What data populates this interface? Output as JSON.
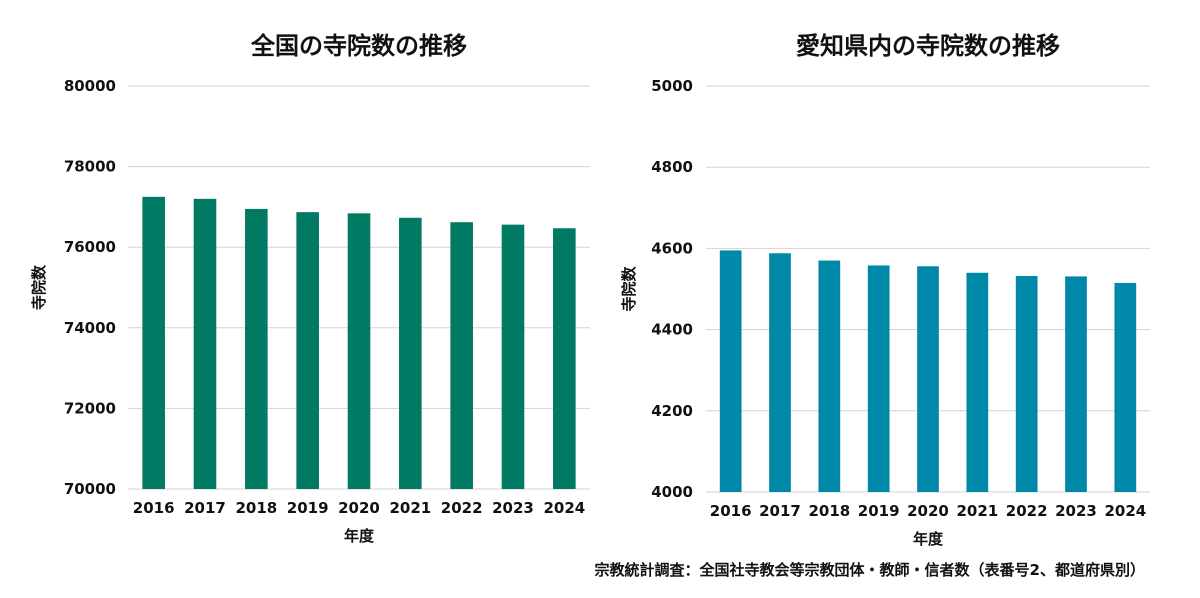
{
  "chart_data": [
    {
      "type": "bar",
      "title": "全国の寺院数の推移",
      "xlabel": "年度",
      "ylabel": "寺院数",
      "categories": [
        "2016",
        "2017",
        "2018",
        "2019",
        "2020",
        "2021",
        "2022",
        "2023",
        "2024"
      ],
      "values": [
        77250,
        77200,
        76950,
        76870,
        76840,
        76730,
        76620,
        76560,
        76470
      ],
      "ylim": [
        70000,
        80000
      ],
      "yticks": [
        "70000",
        "72000",
        "74000",
        "76000",
        "78000",
        "80000"
      ],
      "grid": true,
      "color": "#007a63"
    },
    {
      "type": "bar",
      "title": "愛知県内の寺院数の推移",
      "xlabel": "年度",
      "ylabel": "寺院数",
      "categories": [
        "2016",
        "2017",
        "2018",
        "2019",
        "2020",
        "2021",
        "2022",
        "2023",
        "2024"
      ],
      "values": [
        4595,
        4588,
        4570,
        4558,
        4556,
        4540,
        4532,
        4531,
        4515
      ],
      "ylim": [
        4000,
        5000
      ],
      "yticks": [
        "4000",
        "4200",
        "4400",
        "4600",
        "4800",
        "5000"
      ],
      "grid": true,
      "color": "#0088a8"
    }
  ],
  "source": "宗教統計調査：全国社寺教会等宗教団体・教師・信者数（表番号2、都道府県別）"
}
